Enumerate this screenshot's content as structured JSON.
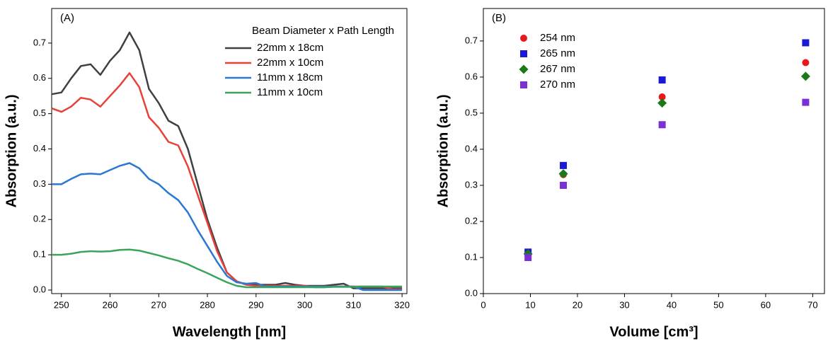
{
  "chart_data": [
    {
      "type": "line",
      "annotation": "(A)",
      "x_label": "Wavelength [nm]",
      "y_label": "Absorption (a.u.)",
      "legend_title": "Beam Diameter x Path Length",
      "legend": "upper right",
      "xlim": [
        248,
        321
      ],
      "ylim": [
        -0.01,
        0.798
      ],
      "xticks": [
        250,
        260,
        270,
        280,
        290,
        300,
        310,
        320
      ],
      "yticks": [
        {
          "value": 0,
          "label": "0.0"
        },
        0.1,
        0.2,
        0.3,
        0.4,
        0.5,
        0.6,
        0.7
      ],
      "x": [
        248,
        250,
        252,
        254,
        256,
        258,
        260,
        262,
        264,
        266,
        268,
        270,
        272,
        274,
        276,
        278,
        280,
        282,
        284,
        286,
        288,
        290,
        292,
        294,
        296,
        298,
        300,
        302,
        304,
        306,
        308,
        310,
        312,
        314,
        316,
        318,
        320
      ],
      "series": [
        {
          "name": "22mm x 18cm",
          "color": "#404040",
          "values": [
            0.555,
            0.56,
            0.6,
            0.635,
            0.64,
            0.61,
            0.65,
            0.68,
            0.73,
            0.68,
            0.57,
            0.53,
            0.48,
            0.465,
            0.4,
            0.3,
            0.2,
            0.12,
            0.05,
            0.025,
            0.015,
            0.015,
            0.015,
            0.015,
            0.02,
            0.015,
            0.012,
            0.012,
            0.012,
            0.015,
            0.018,
            0.005,
            0.005,
            0.005,
            0.005,
            0.005,
            0.005
          ]
        },
        {
          "name": "22mm x 10cm",
          "color": "#e8413c",
          "values": [
            0.515,
            0.505,
            0.52,
            0.545,
            0.54,
            0.52,
            0.55,
            0.58,
            0.615,
            0.575,
            0.49,
            0.46,
            0.42,
            0.41,
            0.35,
            0.27,
            0.19,
            0.11,
            0.05,
            0.025,
            0.015,
            0.012,
            0.012,
            0.012,
            0.012,
            0.012,
            0.012,
            0.008,
            0.008,
            0.01,
            0.01,
            0.01,
            0.01,
            0.01,
            0.01,
            0.002,
            0.002
          ]
        },
        {
          "name": "11mm x 18cm",
          "color": "#2b78d4",
          "values": [
            0.3,
            0.3,
            0.315,
            0.328,
            0.33,
            0.328,
            0.34,
            0.352,
            0.36,
            0.345,
            0.315,
            0.3,
            0.275,
            0.255,
            0.22,
            0.17,
            0.125,
            0.08,
            0.04,
            0.022,
            0.018,
            0.02,
            0.01,
            0.01,
            0.01,
            0.01,
            0.01,
            0.01,
            0.01,
            0.01,
            0.01,
            0.01,
            0,
            0,
            0,
            0,
            0
          ]
        },
        {
          "name": "11mm x 10cm",
          "color": "#3aa55a",
          "values": [
            0.1,
            0.1,
            0.103,
            0.108,
            0.11,
            0.109,
            0.11,
            0.114,
            0.115,
            0.112,
            0.105,
            0.098,
            0.09,
            0.083,
            0.073,
            0.06,
            0.048,
            0.035,
            0.022,
            0.012,
            0.008,
            0.008,
            0.008,
            0.008,
            0.008,
            0.008,
            0.008,
            0.008,
            0.008,
            0.009,
            0.009,
            0.009,
            0.01,
            0.01,
            0.01,
            0.01,
            0.01
          ]
        }
      ]
    },
    {
      "type": "scatter",
      "annotation": "(B)",
      "x_label": "Volume [cm³]",
      "y_label": "Absorption (a.u.)",
      "legend": "upper left",
      "xlim": [
        0,
        72.5
      ],
      "ylim": [
        0,
        0.79
      ],
      "xticks": [
        0,
        10,
        20,
        30,
        40,
        50,
        60,
        70
      ],
      "yticks": [
        {
          "value": 0,
          "label": "0.0"
        },
        0.1,
        0.2,
        0.3,
        0.4,
        0.5,
        0.6,
        0.7
      ],
      "x": [
        9.5,
        17,
        38,
        68.5
      ],
      "series": [
        {
          "name": "254 nm",
          "color": "#e8191a",
          "marker": "circle",
          "values": [
            0.108,
            0.33,
            0.545,
            0.64
          ]
        },
        {
          "name": "265 nm",
          "color": "#1a1ad6",
          "marker": "square",
          "values": [
            0.115,
            0.355,
            0.592,
            0.695
          ]
        },
        {
          "name": "267 nm",
          "color": "#1a7a1a",
          "marker": "diamond",
          "values": [
            0.11,
            0.332,
            0.528,
            0.602
          ]
        },
        {
          "name": "270 nm",
          "color": "#7b2fd6",
          "marker": "square",
          "values": [
            0.1,
            0.3,
            0.468,
            0.53
          ]
        }
      ]
    }
  ]
}
